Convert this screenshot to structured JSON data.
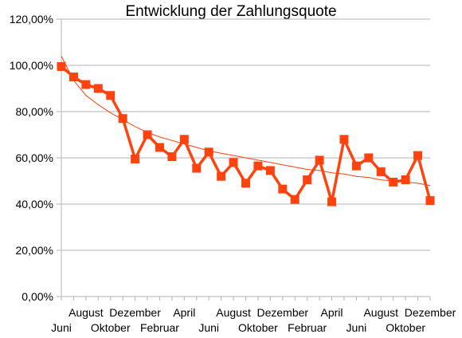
{
  "chart_data": {
    "type": "line",
    "title": "Entwicklung der Zahlungsquote",
    "xlabel": "",
    "ylabel": "",
    "ylim": [
      0,
      1.2
    ],
    "yticks": [
      0,
      0.2,
      0.4,
      0.6,
      0.8,
      1.0,
      1.2
    ],
    "ytick_labels": [
      "0,00%",
      "20,00%",
      "40,00%",
      "60,00%",
      "80,00%",
      "100,00%",
      "120,00%"
    ],
    "x_tick_labels": [
      {
        "index": 0,
        "label": "Juni",
        "row": 2
      },
      {
        "index": 2,
        "label": "August",
        "row": 1
      },
      {
        "index": 4,
        "label": "Oktober",
        "row": 2
      },
      {
        "index": 6,
        "label": "Dezember",
        "row": 1
      },
      {
        "index": 8,
        "label": "Februar",
        "row": 2
      },
      {
        "index": 10,
        "label": "April",
        "row": 1
      },
      {
        "index": 12,
        "label": "Juni",
        "row": 2
      },
      {
        "index": 14,
        "label": "August",
        "row": 1
      },
      {
        "index": 16,
        "label": "Oktober",
        "row": 2
      },
      {
        "index": 18,
        "label": "Dezember",
        "row": 1
      },
      {
        "index": 20,
        "label": "Februar",
        "row": 2
      },
      {
        "index": 22,
        "label": "April",
        "row": 1
      },
      {
        "index": 24,
        "label": "Juni",
        "row": 2
      },
      {
        "index": 26,
        "label": "August",
        "row": 1
      },
      {
        "index": 28,
        "label": "Oktober",
        "row": 2
      },
      {
        "index": 30,
        "label": "Dezember",
        "row": 1
      }
    ],
    "series": [
      {
        "values": [
          0.995,
          0.95,
          0.917,
          0.9,
          0.87,
          0.77,
          0.595,
          0.7,
          0.645,
          0.605,
          0.68,
          0.555,
          0.625,
          0.52,
          0.58,
          0.49,
          0.565,
          0.545,
          0.465,
          0.42,
          0.505,
          0.59,
          0.41,
          0.68,
          0.565,
          0.6,
          0.54,
          0.495,
          0.505,
          0.61,
          0.415
        ],
        "color": "#ff420e"
      }
    ],
    "trendline": {
      "type": "logarithmic",
      "color": "#ff420e",
      "values": [
        1.04,
        0.935,
        0.87,
        0.83,
        0.795,
        0.765,
        0.735,
        0.71,
        0.69,
        0.675,
        0.66,
        0.645,
        0.63,
        0.62,
        0.61,
        0.6,
        0.59,
        0.58,
        0.57,
        0.56,
        0.55,
        0.545,
        0.535,
        0.53,
        0.52,
        0.515,
        0.505,
        0.5,
        0.495,
        0.49,
        0.48
      ]
    },
    "grid": {
      "horizontal": true,
      "color": "#b3b3b3"
    },
    "legend": "none"
  }
}
